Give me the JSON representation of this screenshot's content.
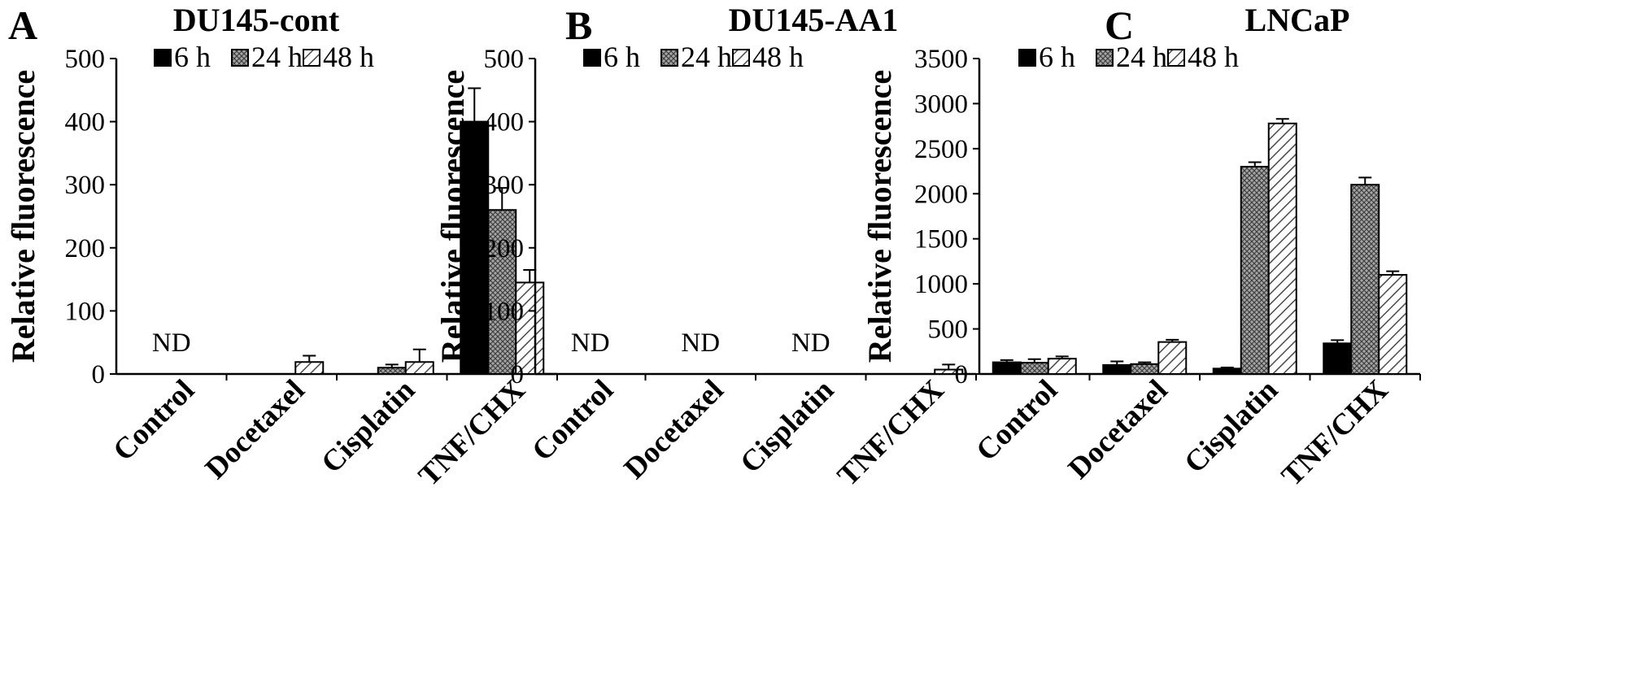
{
  "patterns": {
    "6 h": "solid-black",
    "24 h": "gray-crosshatch",
    "48 h": "diagonal-stripes"
  },
  "chart_data": [
    {
      "type": "bar",
      "panel": "A",
      "title": "DU145-cont",
      "ylabel": "Relative fluorescence",
      "xlabel": "",
      "ylim": [
        0,
        500
      ],
      "yticks": [
        0,
        100,
        200,
        300,
        400,
        500
      ],
      "grid": false,
      "legend_position": "top",
      "categories": [
        "Control",
        "Docetaxel",
        "Cisplatin",
        "TNF/CHX"
      ],
      "series": [
        {
          "name": "6 h",
          "values": [
            null,
            null,
            null,
            400
          ],
          "errors": [
            null,
            null,
            null,
            53
          ]
        },
        {
          "name": "24 h",
          "values": [
            null,
            null,
            10,
            260
          ],
          "errors": [
            null,
            null,
            5,
            35
          ]
        },
        {
          "name": "48 h",
          "values": [
            null,
            19,
            19,
            145
          ],
          "errors": [
            null,
            10,
            20,
            20
          ]
        }
      ],
      "annotations": [
        {
          "category": "Control",
          "text": "ND"
        }
      ]
    },
    {
      "type": "bar",
      "panel": "B",
      "title": "DU145-AA1",
      "ylabel": "Relative fluorescence",
      "xlabel": "",
      "ylim": [
        0,
        500
      ],
      "yticks": [
        0,
        100,
        200,
        300,
        400,
        500
      ],
      "grid": false,
      "legend_position": "top",
      "categories": [
        "Control",
        "Docetaxel",
        "Cisplatin",
        "TNF/CHX"
      ],
      "series": [
        {
          "name": "6 h",
          "values": [
            null,
            null,
            null,
            null
          ],
          "errors": [
            null,
            null,
            null,
            null
          ]
        },
        {
          "name": "24 h",
          "values": [
            null,
            null,
            null,
            null
          ],
          "errors": [
            null,
            null,
            null,
            null
          ]
        },
        {
          "name": "48 h",
          "values": [
            null,
            null,
            null,
            7
          ],
          "errors": [
            null,
            null,
            null,
            8
          ]
        }
      ],
      "annotations": [
        {
          "category": "Control",
          "text": "ND"
        },
        {
          "category": "Docetaxel",
          "text": "ND"
        },
        {
          "category": "Cisplatin",
          "text": "ND"
        }
      ]
    },
    {
      "type": "bar",
      "panel": "C",
      "title": "LNCaP",
      "ylabel": "Relative fluorescence",
      "xlabel": "",
      "ylim": [
        0,
        3500
      ],
      "yticks": [
        0,
        500,
        1000,
        1500,
        2000,
        2500,
        3000,
        3500
      ],
      "grid": false,
      "legend_position": "top",
      "categories": [
        "Control",
        "Docetaxel",
        "Cisplatin",
        "TNF/CHX"
      ],
      "series": [
        {
          "name": "6 h",
          "values": [
            130,
            100,
            60,
            340
          ],
          "errors": [
            25,
            40,
            12,
            35
          ]
        },
        {
          "name": "24 h",
          "values": [
            125,
            110,
            2300,
            2100
          ],
          "errors": [
            40,
            20,
            50,
            80
          ]
        },
        {
          "name": "48 h",
          "values": [
            170,
            355,
            2780,
            1100
          ],
          "errors": [
            25,
            25,
            50,
            40
          ]
        }
      ],
      "annotations": []
    }
  ]
}
